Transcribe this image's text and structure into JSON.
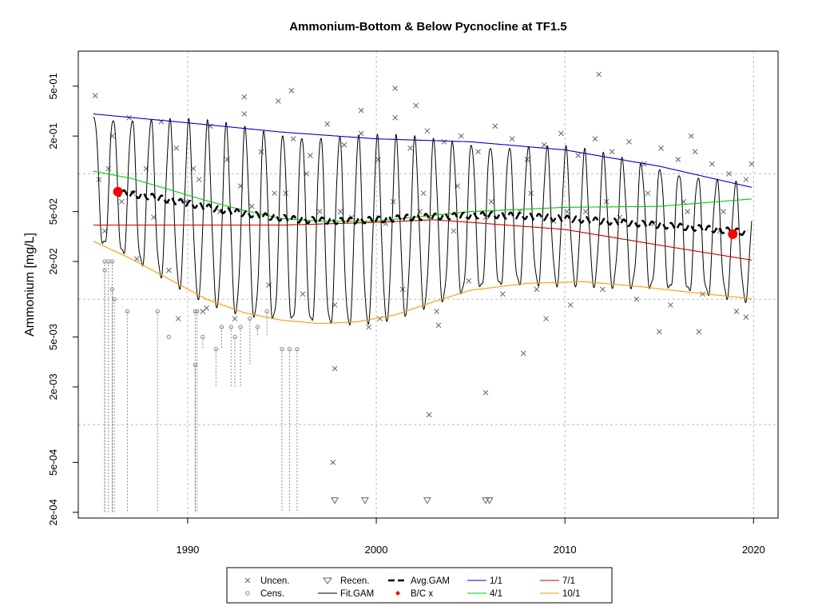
{
  "chart_data": {
    "type": "scatter",
    "title": "Ammonium-Bottom & Below Pycnocline at TF1.5",
    "ylabel": "Ammonium [mg/L]",
    "xlabel": "",
    "xlim": [
      1984.2,
      2021.3
    ],
    "ylim": [
      0.00018,
      0.95
    ],
    "log_y": true,
    "grid": true,
    "x_ticks": [
      1990,
      2000,
      2010,
      2020
    ],
    "y_ticks": [
      {
        "value": 0.0002,
        "label": "2e-04"
      },
      {
        "value": 0.0005,
        "label": "5e-04"
      },
      {
        "value": 0.002,
        "label": "2e-03"
      },
      {
        "value": 0.005,
        "label": "5e-03"
      },
      {
        "value": 0.02,
        "label": "2e-02"
      },
      {
        "value": 0.05,
        "label": "5e-02"
      },
      {
        "value": 0.2,
        "label": "2e-01"
      },
      {
        "value": 0.5,
        "label": "5e-01"
      }
    ],
    "grid_y": [
      0.001,
      0.01,
      0.1
    ],
    "grid_x": [
      1990,
      2000,
      2010,
      2020
    ],
    "legend_position": "bottom",
    "legend": [
      {
        "label": "Uncen.",
        "symbol": "x",
        "color": "#666666"
      },
      {
        "label": "Cens.",
        "symbol": "circle",
        "color": "#888888"
      },
      {
        "label": "Recen.",
        "symbol": "triangle",
        "color": "#666666"
      },
      {
        "label": "Fit.GAM",
        "symbol": "line",
        "color": "#000000"
      },
      {
        "label": "Avg.GAM",
        "symbol": "dash",
        "color": "#000000"
      },
      {
        "label": "B/C x",
        "symbol": "diamond",
        "color": "#ff0000"
      },
      {
        "label": "1/1",
        "symbol": "line",
        "color": "#0000cc"
      },
      {
        "label": "4/1",
        "symbol": "line",
        "color": "#00cc00"
      },
      {
        "label": "7/1",
        "symbol": "line",
        "color": "#cc0000"
      },
      {
        "label": "10/1",
        "symbol": "line",
        "color": "#ff9900"
      }
    ],
    "series": [
      {
        "name": "1/1",
        "color": "#0000cc",
        "x": [
          1985.0,
          1990,
          1995,
          2000,
          2005,
          2010,
          2015,
          2019.9
        ],
        "values": [
          0.3,
          0.255,
          0.215,
          0.19,
          0.18,
          0.155,
          0.115,
          0.078
        ]
      },
      {
        "name": "4/1",
        "color": "#00cc00",
        "x": [
          1985.0,
          1987,
          1989,
          1991,
          1993,
          1995,
          1997,
          2000,
          2005,
          2010,
          2015,
          2019.9
        ],
        "values": [
          0.105,
          0.092,
          0.075,
          0.061,
          0.051,
          0.044,
          0.042,
          0.042,
          0.05,
          0.054,
          0.055,
          0.063
        ]
      },
      {
        "name": "7/1",
        "color": "#cc0000",
        "x": [
          1985.0,
          1990,
          1995,
          2000,
          2003,
          2005,
          2010,
          2015,
          2019.9
        ],
        "values": [
          0.039,
          0.039,
          0.039,
          0.041,
          0.043,
          0.041,
          0.036,
          0.027,
          0.0205
        ]
      },
      {
        "name": "10/1",
        "color": "#ff9900",
        "x": [
          1985.0,
          1987,
          1989,
          1991,
          1993,
          1995,
          1997,
          1999,
          2001,
          2003,
          2005,
          2008,
          2011,
          2014,
          2017,
          2019.9
        ],
        "values": [
          0.029,
          0.021,
          0.0145,
          0.01,
          0.0078,
          0.0068,
          0.0064,
          0.0066,
          0.0075,
          0.0095,
          0.0118,
          0.0134,
          0.0138,
          0.0126,
          0.0112,
          0.0101
        ]
      },
      {
        "name": "Avg.GAM",
        "color": "#000000",
        "x": [
          1986.2,
          1988,
          1990,
          1992,
          1994,
          1996,
          1998,
          2000,
          2002,
          2004,
          2006,
          2008,
          2010,
          2012,
          2014,
          2016,
          2018,
          2019.7
        ],
        "values": [
          0.071,
          0.066,
          0.058,
          0.051,
          0.046,
          0.043,
          0.042,
          0.043,
          0.045,
          0.046,
          0.047,
          0.046,
          0.044,
          0.042,
          0.04,
          0.038,
          0.036,
          0.034
        ]
      },
      {
        "name": "B/C x",
        "color": "#ff0000",
        "x": [
          1986.3,
          2018.9
        ],
        "values": [
          0.072,
          0.033
        ]
      }
    ],
    "fit_gam": {
      "start": 1985.0,
      "end": 2019.9
    },
    "uncensored": {
      "x": [
        1985.1,
        1985.3,
        1985.6,
        1986.0,
        1986.5,
        1986.9,
        1987.3,
        1987.8,
        1988.2,
        1988.6,
        1989.0,
        1989.4,
        1989.9,
        1990.3,
        1990.8,
        1991.2,
        1991.7,
        1992.1,
        1992.5,
        1993.0,
        1993.4,
        1993.9,
        1994.3,
        1994.8,
        1995.2,
        1995.6,
        1996.1,
        1996.5,
        1997.0,
        1997.4,
        1997.8,
        1998.3,
        1998.7,
        1999.2,
        1999.6,
        2000.1,
        2000.5,
        2001.0,
        2001.4,
        2001.8,
        2002.3,
        2002.7,
        2003.2,
        2003.6,
        2004.1,
        2004.5,
        2004.9,
        2005.4,
        2005.8,
        2006.3,
        2006.7,
        2007.2,
        2007.6,
        2008.0,
        2008.5,
        2008.9,
        2009.4,
        2009.8,
        2010.3,
        2010.7,
        2011.1,
        2011.6,
        2012.0,
        2012.5,
        2012.9,
        2013.4,
        2013.8,
        2014.2,
        2014.7,
        2015.1,
        2015.6,
        2016.0,
        2016.5,
        2016.9,
        2017.3,
        2017.8,
        2018.2,
        2018.7,
        2019.1,
        2019.6,
        2019.9,
        1985.8,
        1987.1,
        1988.9,
        1990.6,
        1992.8,
        1994.6,
        1996.3,
        1998.1,
        2000.9,
        2002.5,
        2004.3,
        2006.1,
        2008.2,
        2010.1,
        2012.2,
        2014.4,
        2016.3,
        2018.4,
        1997.7,
        1997.8,
        2002.8,
        2005.8,
        2007.8,
        2011.8,
        2000.2,
        1993.0,
        1995.5,
        1999.2,
        2001.0,
        2002.1,
        2019.6,
        1989.5,
        2015.0,
        2017.1,
        2016.7,
        2003.3,
        1991.0,
        2009.0
      ],
      "values": [
        0.42,
        0.09,
        0.035,
        0.2,
        0.06,
        0.28,
        0.021,
        0.11,
        0.045,
        0.26,
        0.017,
        0.16,
        0.06,
        0.11,
        0.008,
        0.24,
        0.05,
        0.13,
        0.007,
        0.3,
        0.055,
        0.15,
        0.013,
        0.38,
        0.07,
        0.19,
        0.011,
        0.14,
        0.05,
        0.25,
        0.009,
        0.17,
        0.045,
        0.21,
        0.006,
        0.13,
        0.04,
        0.28,
        0.012,
        0.16,
        0.05,
        0.22,
        0.008,
        0.18,
        0.035,
        0.2,
        0.014,
        0.15,
        0.045,
        0.24,
        0.011,
        0.19,
        0.05,
        0.13,
        0.012,
        0.17,
        0.042,
        0.21,
        0.009,
        0.14,
        0.05,
        0.19,
        0.012,
        0.15,
        0.045,
        0.18,
        0.01,
        0.12,
        0.04,
        0.16,
        0.009,
        0.13,
        0.05,
        0.15,
        0.011,
        0.12,
        0.035,
        0.1,
        0.008,
        0.09,
        0.12,
        0.11,
        0.07,
        0.06,
        0.09,
        0.08,
        0.07,
        0.1,
        0.05,
        0.06,
        0.07,
        0.08,
        0.06,
        0.07,
        0.05,
        0.06,
        0.07,
        0.06,
        0.05,
        0.0005,
        0.0028,
        0.0012,
        0.0018,
        0.0037,
        0.62,
        0.007,
        0.41,
        0.46,
        0.32,
        0.48,
        0.35,
        0.0072,
        0.007,
        0.0055,
        0.0055,
        0.2,
        0.0062,
        0.0085,
        0.007
      ]
    },
    "censored": {
      "x": [
        1985.6,
        1985.8,
        1986.0,
        1986.1,
        1986.8,
        1988.4,
        1989.0,
        1990.4,
        1990.5,
        1990.8,
        1991.5,
        1991.8,
        1992.3,
        1992.8,
        1993.3,
        1993.7,
        1994.2,
        1995.0,
        1995.4,
        1995.8,
        1985.6,
        1986.0,
        1990.4,
        1992.5
      ],
      "values": [
        0.02,
        0.02,
        0.02,
        0.01,
        0.008,
        0.008,
        0.005,
        0.008,
        0.008,
        0.005,
        0.004,
        0.006,
        0.006,
        0.006,
        0.007,
        0.006,
        0.008,
        0.004,
        0.004,
        0.004,
        0.017,
        0.012,
        0.003,
        0.005
      ],
      "low": [
        0.0002,
        0.0002,
        0.0002,
        0.0002,
        0.0002,
        0.0002,
        0.005,
        0.0002,
        0.0002,
        0.004,
        0.002,
        0.004,
        0.002,
        0.002,
        0.003,
        0.005,
        0.005,
        0.0002,
        0.0002,
        0.0002,
        0.0002,
        0.0002,
        0.0002,
        0.002
      ]
    },
    "recensored": {
      "x": [
        1997.8,
        1999.4,
        2002.7,
        2005.8,
        2006.0
      ],
      "values": [
        0.00025,
        0.00025,
        0.00025,
        0.00025,
        0.00025
      ]
    }
  }
}
